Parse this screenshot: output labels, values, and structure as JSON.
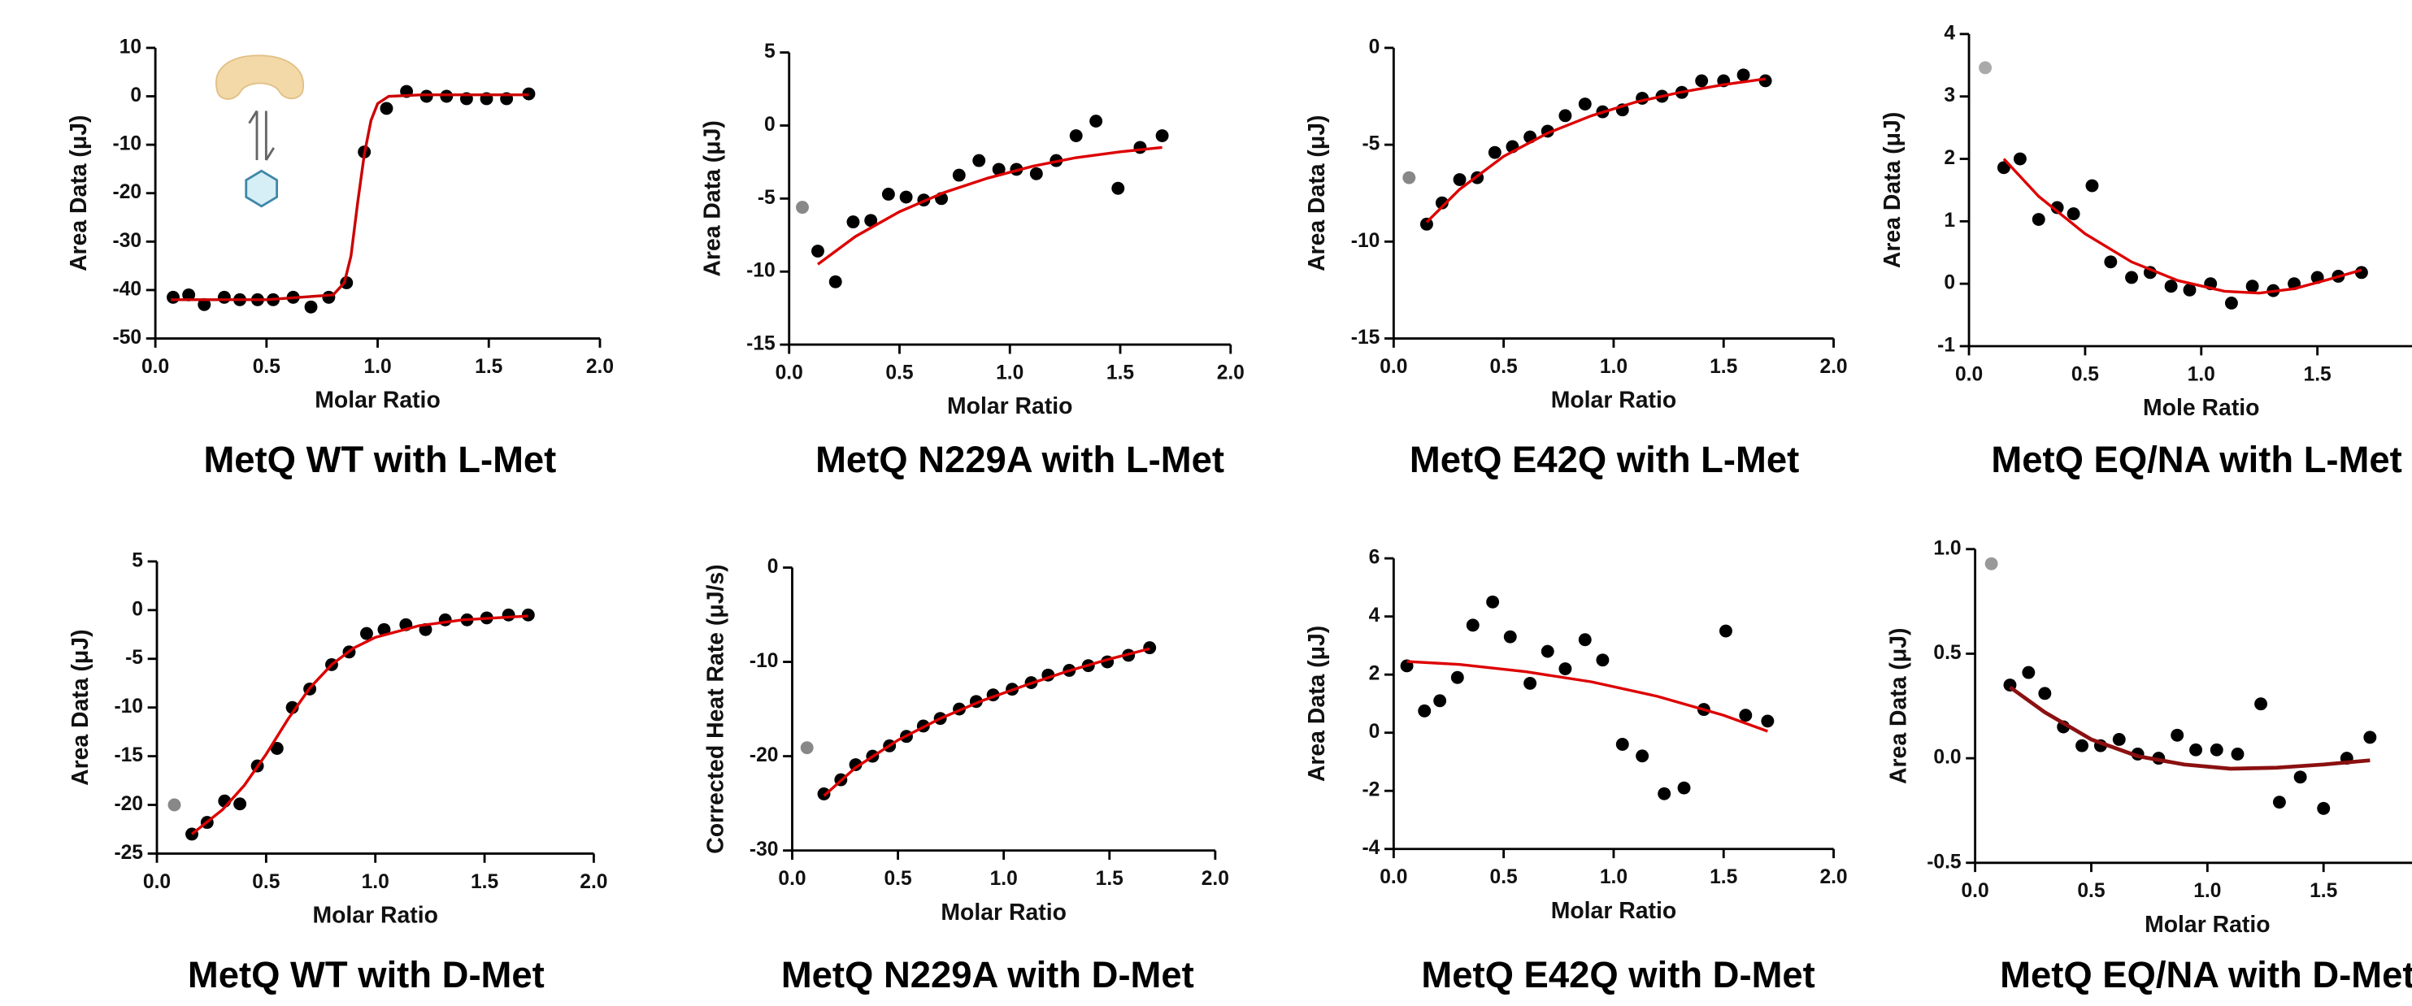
{
  "chart_data": [
    {
      "type": "scatter",
      "title": "MetQ WT with L-Met",
      "x_label": "Molar Ratio",
      "y_label": "Area Data (μJ)",
      "xlim": [
        0,
        2
      ],
      "ylim": [
        -50,
        10
      ],
      "xticks": [
        {
          "value": 0,
          "label": "0.0"
        },
        0.5,
        {
          "value": 1,
          "label": "1.0"
        },
        1.5,
        {
          "value": 2,
          "label": "2.0"
        }
      ],
      "yticks": [
        -50,
        -40,
        -30,
        -20,
        -10,
        0,
        10
      ],
      "series": [
        {
          "style": "points",
          "color": "#000000",
          "x": [
            0.08,
            0.15,
            0.22,
            0.31,
            0.38,
            0.46,
            0.53,
            0.62,
            0.7,
            0.78,
            0.86,
            0.94,
            1.04,
            1.13,
            1.22,
            1.31,
            1.4,
            1.49,
            1.58,
            1.68
          ],
          "values": [
            -41.5,
            -41,
            -43,
            -41.5,
            -42,
            -42,
            -42,
            -41.5,
            -43.5,
            -41.5,
            -38.5,
            -11.5,
            -2.5,
            1,
            0,
            0,
            -0.5,
            -0.5,
            -0.5,
            0.5
          ]
        },
        {
          "style": "line",
          "color": "#cc0000",
          "x": [
            0.07,
            0.5,
            0.8,
            0.85,
            0.88,
            0.91,
            0.94,
            0.97,
            1.0,
            1.05,
            1.2,
            1.68
          ],
          "values": [
            -42,
            -42,
            -41,
            -38.5,
            -33,
            -22,
            -12,
            -5,
            -1.5,
            0,
            0.3,
            0.3
          ]
        }
      ]
    },
    {
      "type": "scatter",
      "title": "MetQ N229A with L-Met",
      "x_label": "Molar Ratio",
      "y_label": "Area Data (μJ)",
      "xlim": [
        0,
        2
      ],
      "ylim": [
        -15,
        5
      ],
      "xticks": [
        {
          "value": 0,
          "label": "0.0"
        },
        0.5,
        {
          "value": 1,
          "label": "1.0"
        },
        1.5,
        {
          "value": 2,
          "label": "2.0"
        }
      ],
      "yticks": [
        -15,
        -10,
        -5,
        0,
        5
      ],
      "series": [
        {
          "style": "points",
          "color": "#888888",
          "x": [
            0.06
          ],
          "values": [
            -5.6
          ]
        },
        {
          "style": "points",
          "color": "#000000",
          "x": [
            0.13,
            0.21,
            0.29,
            0.37,
            0.45,
            0.53,
            0.61,
            0.69,
            0.77,
            0.86,
            0.95,
            1.03,
            1.12,
            1.21,
            1.3,
            1.39,
            1.49,
            1.59,
            1.69
          ],
          "values": [
            -8.6,
            -10.7,
            -6.6,
            -6.5,
            -4.7,
            -4.9,
            -5.1,
            -5.0,
            -3.4,
            -2.4,
            -3.0,
            -3.0,
            -3.3,
            -2.4,
            -0.7,
            0.3,
            -4.3,
            -1.5,
            -0.7
          ]
        },
        {
          "style": "line",
          "color": "#dd0000",
          "x": [
            0.13,
            0.3,
            0.5,
            0.7,
            0.9,
            1.1,
            1.3,
            1.5,
            1.69
          ],
          "values": [
            -9.5,
            -7.6,
            -5.9,
            -4.6,
            -3.6,
            -2.8,
            -2.2,
            -1.8,
            -1.5
          ]
        }
      ]
    },
    {
      "type": "scatter",
      "title": "MetQ E42Q with L-Met",
      "x_label": "Molar Ratio",
      "y_label": "Area Data (μJ)",
      "xlim": [
        0,
        2
      ],
      "ylim": [
        -15,
        0
      ],
      "xticks": [
        {
          "value": 0,
          "label": "0.0"
        },
        0.5,
        {
          "value": 1,
          "label": "1.0"
        },
        1.5,
        {
          "value": 2,
          "label": "2.0"
        }
      ],
      "yticks": [
        -15,
        -10,
        -5,
        0
      ],
      "series": [
        {
          "style": "points",
          "color": "#888888",
          "x": [
            0.07
          ],
          "values": [
            -6.7
          ]
        },
        {
          "style": "points",
          "color": "#000000",
          "x": [
            0.15,
            0.22,
            0.3,
            0.38,
            0.46,
            0.54,
            0.62,
            0.7,
            0.78,
            0.87,
            0.95,
            1.04,
            1.13,
            1.22,
            1.31,
            1.4,
            1.5,
            1.59,
            1.69
          ],
          "values": [
            -9.1,
            -8.0,
            -6.8,
            -6.7,
            -5.4,
            -5.1,
            -4.6,
            -4.3,
            -3.5,
            -2.9,
            -3.3,
            -3.2,
            -2.6,
            -2.5,
            -2.3,
            -1.7,
            -1.7,
            -1.4,
            -1.7
          ]
        },
        {
          "style": "line",
          "color": "#dd0000",
          "x": [
            0.15,
            0.3,
            0.5,
            0.7,
            0.9,
            1.1,
            1.3,
            1.5,
            1.69
          ],
          "values": [
            -9.0,
            -7.3,
            -5.6,
            -4.4,
            -3.5,
            -2.8,
            -2.3,
            -1.9,
            -1.6
          ]
        }
      ]
    },
    {
      "type": "scatter",
      "title": "MetQ EQ/NA with L-Met",
      "x_label": "Mole Ratio",
      "y_label": "Area Data (μJ)",
      "xlim": [
        0,
        2
      ],
      "ylim": [
        -1,
        4
      ],
      "xticks": [
        {
          "value": 0,
          "label": "0.0"
        },
        0.5,
        {
          "value": 1,
          "label": "1.0"
        },
        1.5
      ],
      "yticks": [
        -1,
        0,
        1,
        2,
        3,
        4
      ],
      "series": [
        {
          "style": "points",
          "color": "#aaaaaa",
          "x": [
            0.07
          ],
          "values": [
            3.46
          ]
        },
        {
          "style": "points",
          "color": "#000000",
          "x": [
            0.15,
            0.22,
            0.3,
            0.38,
            0.45,
            0.53,
            0.61,
            0.7,
            0.78,
            0.87,
            0.95,
            1.04,
            1.13,
            1.22,
            1.31,
            1.4,
            1.5,
            1.59,
            1.69
          ],
          "values": [
            1.86,
            2.0,
            1.03,
            1.22,
            1.12,
            1.57,
            0.35,
            0.1,
            0.18,
            -0.04,
            -0.1,
            0,
            -0.31,
            -0.04,
            -0.11,
            0,
            0.1,
            0.12,
            0.18
          ]
        },
        {
          "style": "line",
          "color": "#dd0000",
          "x": [
            0.15,
            0.3,
            0.5,
            0.7,
            0.9,
            1.1,
            1.25,
            1.4,
            1.55,
            1.69
          ],
          "values": [
            2.0,
            1.4,
            0.8,
            0.35,
            0.05,
            -0.12,
            -0.15,
            -0.08,
            0.07,
            0.22
          ]
        }
      ]
    },
    {
      "type": "scatter",
      "title": "MetQ WT with D-Met",
      "x_label": "Molar Ratio",
      "y_label": "Area Data (μJ)",
      "xlim": [
        0,
        2
      ],
      "ylim": [
        -25,
        5
      ],
      "xticks": [
        {
          "value": 0,
          "label": "0.0"
        },
        0.5,
        {
          "value": 1,
          "label": "1.0"
        },
        1.5,
        {
          "value": 2,
          "label": "2.0"
        }
      ],
      "yticks": [
        -25,
        -20,
        -15,
        -10,
        -5,
        0,
        5
      ],
      "series": [
        {
          "style": "points",
          "color": "#888888",
          "x": [
            0.08
          ],
          "values": [
            -20
          ]
        },
        {
          "style": "points",
          "color": "#000000",
          "x": [
            0.16,
            0.23,
            0.31,
            0.38,
            0.46,
            0.55,
            0.62,
            0.7,
            0.8,
            0.88,
            0.96,
            1.04,
            1.14,
            1.23,
            1.32,
            1.42,
            1.51,
            1.61,
            1.7
          ],
          "values": [
            -23,
            -21.8,
            -19.6,
            -19.9,
            -16,
            -14.2,
            -10,
            -8.1,
            -5.6,
            -4.3,
            -2.4,
            -2.0,
            -1.5,
            -2.0,
            -1.0,
            -1.0,
            -0.8,
            -0.5,
            -0.5
          ]
        },
        {
          "style": "line",
          "color": "#dd0000",
          "x": [
            0.16,
            0.3,
            0.4,
            0.5,
            0.6,
            0.7,
            0.8,
            0.9,
            1.0,
            1.2,
            1.4,
            1.7
          ],
          "values": [
            -23,
            -20.5,
            -18,
            -14.8,
            -11.2,
            -8,
            -5.6,
            -3.9,
            -2.8,
            -1.6,
            -1.0,
            -0.6
          ]
        }
      ]
    },
    {
      "type": "scatter",
      "title": "MetQ N229A with D-Met",
      "x_label": "Molar Ratio",
      "y_label": "Corrected Heat Rate (μJ/s)",
      "xlim": [
        0,
        2
      ],
      "ylim": [
        -30,
        0
      ],
      "xticks": [
        {
          "value": 0,
          "label": "0.0"
        },
        0.5,
        {
          "value": 1,
          "label": "1.0"
        },
        1.5,
        {
          "value": 2,
          "label": "2.0"
        }
      ],
      "yticks": [
        -30,
        -20,
        -10,
        0
      ],
      "series": [
        {
          "style": "points",
          "color": "#888888",
          "x": [
            0.07
          ],
          "values": [
            -19.1
          ]
        },
        {
          "style": "points",
          "color": "#000000",
          "x": [
            0.15,
            0.23,
            0.3,
            0.38,
            0.46,
            0.54,
            0.62,
            0.7,
            0.79,
            0.87,
            0.95,
            1.04,
            1.13,
            1.21,
            1.31,
            1.4,
            1.49,
            1.59,
            1.69
          ],
          "values": [
            -24,
            -22.5,
            -20.9,
            -20,
            -18.9,
            -17.9,
            -16.8,
            -16,
            -15,
            -14.2,
            -13.5,
            -12.9,
            -12.2,
            -11.4,
            -10.9,
            -10.4,
            -10.0,
            -9.3,
            -8.5
          ]
        },
        {
          "style": "line",
          "color": "#dd0000",
          "x": [
            0.15,
            0.3,
            0.5,
            0.7,
            0.9,
            1.1,
            1.3,
            1.5,
            1.69
          ],
          "values": [
            -24.2,
            -21.2,
            -18.3,
            -16.0,
            -14.1,
            -12.5,
            -11.0,
            -9.7,
            -8.6
          ]
        }
      ]
    },
    {
      "type": "scatter",
      "title": "MetQ E42Q with D-Met",
      "x_label": "Molar Ratio",
      "y_label": "Area Data (μJ)",
      "xlim": [
        0,
        2
      ],
      "ylim": [
        -4,
        6
      ],
      "xticks": [
        {
          "value": 0,
          "label": "0.0"
        },
        0.5,
        {
          "value": 1,
          "label": "1.0"
        },
        1.5,
        {
          "value": 2,
          "label": "2.0"
        }
      ],
      "yticks": [
        -4,
        -2,
        0,
        2,
        4,
        6
      ],
      "series": [
        {
          "style": "points",
          "color": "#000000",
          "x": [
            0.06,
            0.14,
            0.21,
            0.29,
            0.36,
            0.45,
            0.53,
            0.62,
            0.7,
            0.78,
            0.87,
            0.95,
            1.04,
            1.13,
            1.23,
            1.32,
            1.41,
            1.51,
            1.6,
            1.7
          ],
          "values": [
            2.3,
            0.75,
            1.1,
            1.9,
            3.7,
            4.5,
            3.3,
            1.7,
            2.8,
            2.2,
            3.2,
            2.5,
            -0.4,
            -0.8,
            -2.1,
            -1.9,
            0.8,
            3.5,
            0.6,
            0.4
          ]
        },
        {
          "style": "line",
          "color": "#dd0000",
          "x": [
            0.06,
            0.3,
            0.6,
            0.9,
            1.2,
            1.5,
            1.7
          ],
          "values": [
            2.45,
            2.35,
            2.1,
            1.75,
            1.25,
            0.6,
            0.05
          ]
        }
      ]
    },
    {
      "type": "scatter",
      "title": "MetQ EQ/NA with D-Met",
      "x_label": "Molar Ratio",
      "y_label": "Area Data (μJ)",
      "xlim": [
        0,
        2
      ],
      "ylim": [
        -0.5,
        1
      ],
      "xticks": [
        {
          "value": 0,
          "label": "0.0"
        },
        0.5,
        {
          "value": 1,
          "label": "1.0"
        },
        1.5
      ],
      "yticks": [
        -0.5,
        {
          "value": 0,
          "label": "0.0"
        },
        0.5,
        {
          "value": 1,
          "label": "1.0"
        }
      ],
      "series": [
        {
          "style": "points",
          "color": "#999999",
          "x": [
            0.07
          ],
          "values": [
            0.93
          ]
        },
        {
          "style": "points",
          "color": "#000000",
          "x": [
            0.15,
            0.23,
            0.3,
            0.38,
            0.46,
            0.54,
            0.62,
            0.7,
            0.79,
            0.87,
            0.95,
            1.04,
            1.13,
            1.23,
            1.31,
            1.4,
            1.5,
            1.6,
            1.7
          ],
          "values": [
            0.35,
            0.41,
            0.31,
            0.15,
            0.06,
            0.06,
            0.09,
            0.02,
            0.0,
            0.11,
            0.04,
            0.04,
            0.02,
            0.26,
            -0.21,
            -0.09,
            -0.24,
            0.0,
            0.1
          ]
        },
        {
          "style": "line",
          "color": "#8b1010",
          "x": [
            0.15,
            0.3,
            0.5,
            0.7,
            0.9,
            1.1,
            1.3,
            1.5,
            1.7
          ],
          "values": [
            0.34,
            0.22,
            0.09,
            0.01,
            -0.03,
            -0.05,
            -0.045,
            -0.03,
            -0.01
          ]
        }
      ]
    }
  ]
}
